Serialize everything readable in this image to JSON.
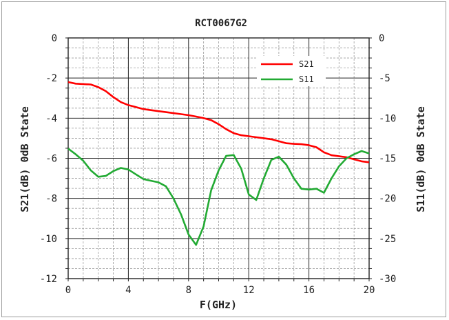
{
  "chart_data": {
    "type": "line",
    "title": "RCT0067G2",
    "xlabel": "F(GHz)",
    "ylabel_left": "S21(dB) 0dB State",
    "ylabel_right": "S11(dB) 0dB State",
    "xlim": [
      0,
      20
    ],
    "ylim_left": [
      -12,
      0
    ],
    "ylim_right": [
      -30,
      0
    ],
    "x_ticks": [
      0,
      4,
      8,
      12,
      16,
      20
    ],
    "y_ticks_left": [
      0,
      -2,
      -4,
      -6,
      -8,
      -10,
      -12
    ],
    "y_ticks_right": [
      0,
      -5,
      -10,
      -15,
      -20,
      -25,
      -30
    ],
    "grid": true,
    "legend_position": "top-right",
    "series": [
      {
        "name": "S21",
        "axis": "left",
        "color": "#ff0000",
        "x": [
          0,
          0.5,
          1,
          1.5,
          2,
          2.5,
          3,
          3.5,
          4,
          4.5,
          5,
          5.5,
          6,
          6.5,
          7,
          7.5,
          8,
          8.5,
          9,
          9.5,
          10,
          10.5,
          11,
          11.5,
          12,
          12.5,
          13,
          13.5,
          14,
          14.5,
          15,
          15.5,
          16,
          16.5,
          17,
          17.5,
          18,
          18.5,
          19,
          19.5,
          20
        ],
        "values": [
          -2.2,
          -2.28,
          -2.3,
          -2.32,
          -2.45,
          -2.65,
          -2.95,
          -3.2,
          -3.35,
          -3.45,
          -3.55,
          -3.6,
          -3.65,
          -3.7,
          -3.75,
          -3.8,
          -3.85,
          -3.92,
          -4.0,
          -4.1,
          -4.3,
          -4.55,
          -4.75,
          -4.85,
          -4.9,
          -4.95,
          -5.0,
          -5.05,
          -5.15,
          -5.25,
          -5.28,
          -5.3,
          -5.35,
          -5.45,
          -5.7,
          -5.85,
          -5.9,
          -5.95,
          -6.05,
          -6.15,
          -6.2
        ]
      },
      {
        "name": "S11",
        "axis": "right",
        "color": "#22aa33",
        "x": [
          0,
          0.5,
          1,
          1.5,
          2,
          2.5,
          3,
          3.5,
          4,
          4.5,
          5,
          5.5,
          6,
          6.5,
          7,
          7.5,
          8,
          8.5,
          9,
          9.5,
          10,
          10.5,
          11,
          11.5,
          12,
          12.5,
          13,
          13.5,
          14,
          14.5,
          15,
          15.5,
          16,
          16.5,
          17,
          17.5,
          18,
          18.5,
          19,
          19.5,
          20
        ],
        "values": [
          -13.8,
          -14.5,
          -15.3,
          -16.5,
          -17.3,
          -17.2,
          -16.6,
          -16.2,
          -16.4,
          -17.0,
          -17.6,
          -17.8,
          -18.0,
          -18.5,
          -20.0,
          -22.0,
          -24.5,
          -25.8,
          -23.5,
          -19.0,
          -16.5,
          -14.7,
          -14.6,
          -16.3,
          -19.5,
          -20.2,
          -17.5,
          -15.2,
          -14.8,
          -15.8,
          -17.5,
          -18.8,
          -18.9,
          -18.8,
          -19.3,
          -17.5,
          -16.0,
          -15.0,
          -14.5,
          -14.1,
          -14.4
        ]
      }
    ]
  }
}
